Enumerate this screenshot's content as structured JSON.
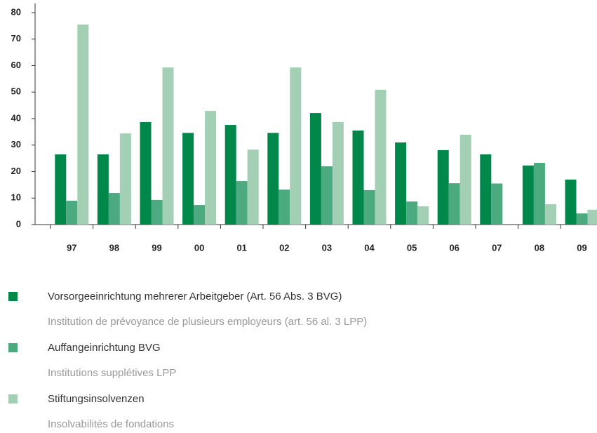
{
  "chart_data": {
    "type": "bar",
    "categories": [
      "97",
      "98",
      "99",
      "00",
      "01",
      "02",
      "03",
      "04",
      "05",
      "06",
      "07",
      "08",
      "09"
    ],
    "series": [
      {
        "name": "Vorsorgeeinrichtung mehrerer Arbeitgeber (Art. 56 Abs. 3 BVG)",
        "subtitle": "Institution de prévoyance de plusieurs employeurs (art. 56 al. 3 LPP)",
        "color": "#00874a",
        "values": [
          26.5,
          26.5,
          38.7,
          34.6,
          37.6,
          34.6,
          42.1,
          35.5,
          31,
          28.1,
          26.5,
          22.3,
          17
        ]
      },
      {
        "name": "Auffangeinrichtung BVG",
        "subtitle": "Institutions supplétives LPP",
        "color": "#4caa80",
        "values": [
          9,
          11.9,
          9.3,
          7.4,
          16.4,
          13.2,
          22,
          13,
          8.7,
          15.6,
          15.5,
          23.3,
          4.2
        ]
      },
      {
        "name": "Stiftungsinsolvenzen",
        "subtitle": "Insolvabilités de fondations",
        "color": "#a3cfb5",
        "values": [
          75.5,
          34.4,
          59.3,
          42.9,
          28.3,
          59.3,
          38.7,
          50.9,
          6.9,
          33.9,
          0,
          7.7,
          5.6
        ]
      }
    ],
    "ylim": [
      0,
      80
    ],
    "yticks": [
      0,
      10,
      20,
      30,
      40,
      50,
      60,
      70,
      80
    ],
    "grid": false
  }
}
